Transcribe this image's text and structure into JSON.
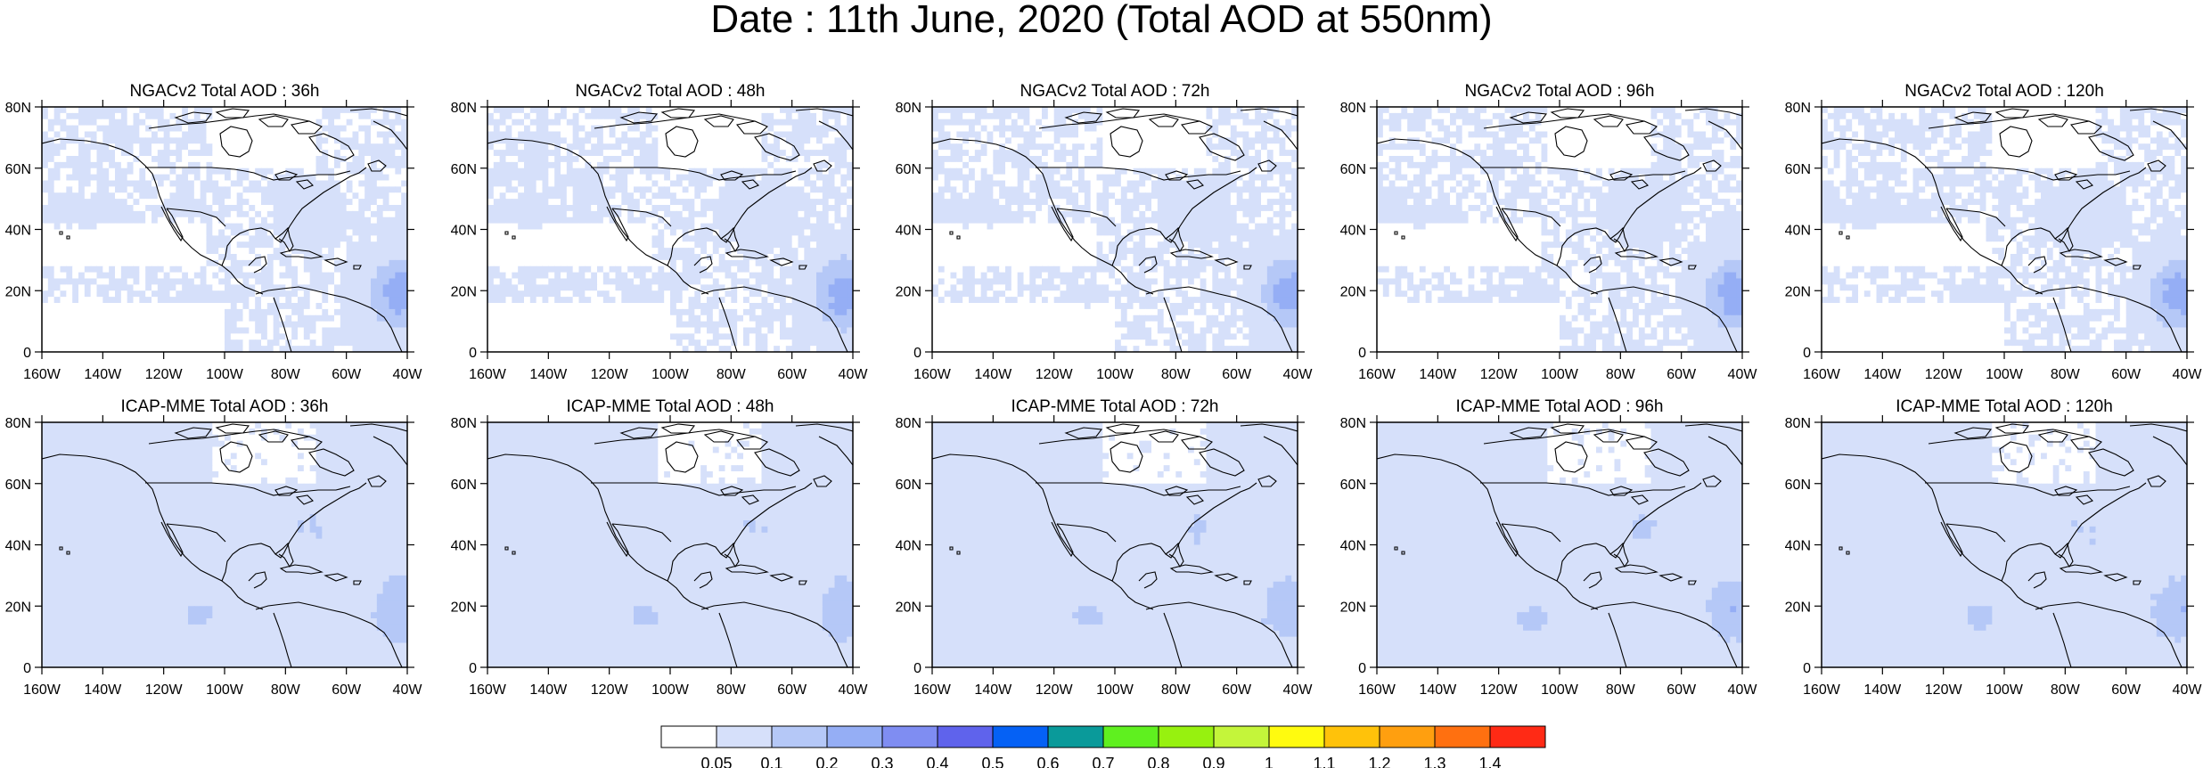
{
  "title": "Date : 11th June, 2020 (Total AOD at 550nm)",
  "map": {
    "lon_range": [
      -160,
      -40
    ],
    "lat_range": [
      0,
      80
    ],
    "x_ticks": [
      "160W",
      "140W",
      "120W",
      "100W",
      "80W",
      "60W",
      "40W"
    ],
    "y_ticks": [
      "0",
      "20N",
      "40N",
      "60N",
      "80N"
    ]
  },
  "panels": [
    {
      "title": "NGACv2 Total AOD : 36h",
      "model": "NGACv2",
      "forecast": "36h"
    },
    {
      "title": "NGACv2 Total AOD : 48h",
      "model": "NGACv2",
      "forecast": "48h"
    },
    {
      "title": "NGACv2 Total AOD : 72h",
      "model": "NGACv2",
      "forecast": "72h"
    },
    {
      "title": "NGACv2 Total AOD : 96h",
      "model": "NGACv2",
      "forecast": "96h"
    },
    {
      "title": "NGACv2 Total AOD : 120h",
      "model": "NGACv2",
      "forecast": "120h"
    },
    {
      "title": "ICAP-MME Total AOD : 36h",
      "model": "ICAP-MME",
      "forecast": "36h"
    },
    {
      "title": "ICAP-MME Total AOD : 48h",
      "model": "ICAP-MME",
      "forecast": "48h"
    },
    {
      "title": "ICAP-MME Total AOD : 72h",
      "model": "ICAP-MME",
      "forecast": "72h"
    },
    {
      "title": "ICAP-MME Total AOD : 96h",
      "model": "ICAP-MME",
      "forecast": "96h"
    },
    {
      "title": "ICAP-MME Total AOD : 120h",
      "model": "ICAP-MME",
      "forecast": "120h"
    }
  ],
  "colorbar": {
    "colors": [
      "#ffffff",
      "#d6e0fa",
      "#b5c8f7",
      "#95aef5",
      "#7f8df2",
      "#5f63ec",
      "#0561f5",
      "#0a9a9a",
      "#5ff01f",
      "#97f10f",
      "#c4f53a",
      "#fffb0f",
      "#ffc20a",
      "#ff9f0f",
      "#ff7010",
      "#ff2a15"
    ],
    "labels": [
      "0.05",
      "0.1",
      "0.2",
      "0.3",
      "0.4",
      "0.5",
      "0.6",
      "0.7",
      "0.8",
      "0.9",
      "1",
      "1.1",
      "1.2",
      "1.3",
      "1.4"
    ]
  }
}
